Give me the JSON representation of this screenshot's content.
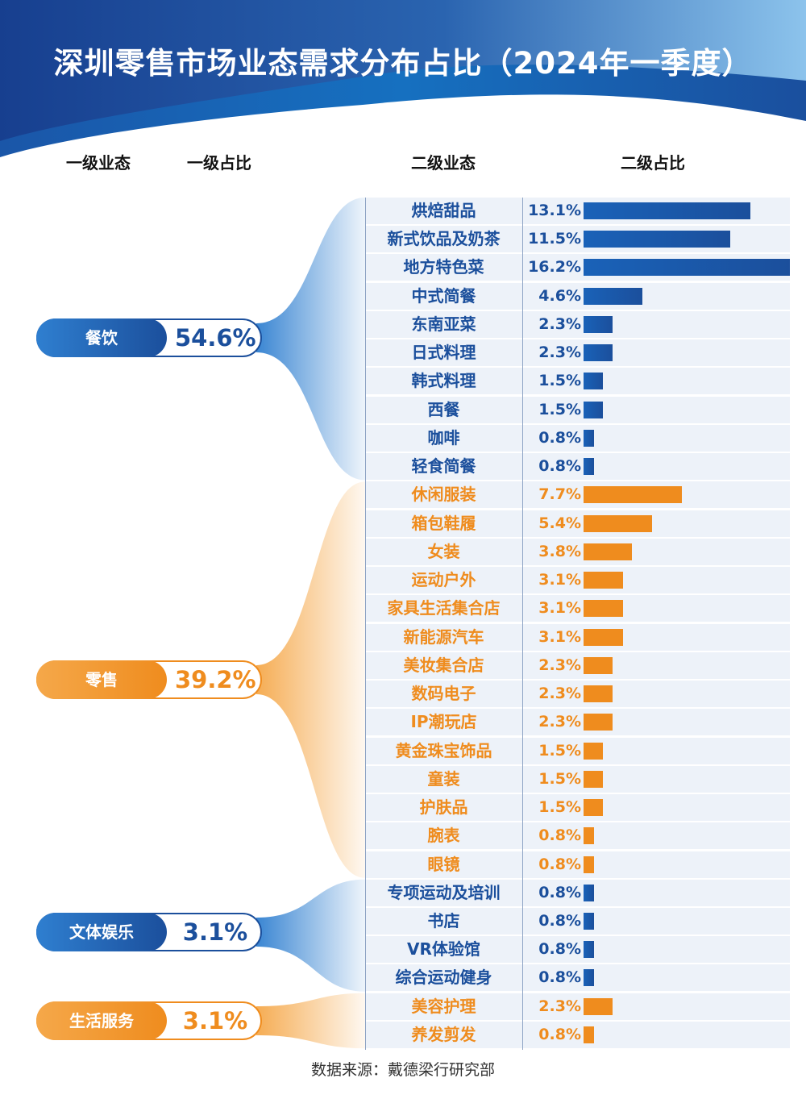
{
  "title": "深圳零售市场业态需求分布占比（2024年一季度）",
  "column_headers": [
    "一级业态",
    "一级占比",
    "二级业态",
    "二级占比"
  ],
  "source": "数据来源：戴德梁行研究部",
  "colors": {
    "blue": "#1b4f9c",
    "blue_light": "#2f7fd0",
    "orange": "#ef8c1e",
    "orange_light": "#f5a84a",
    "row_bg": "#edf2f9"
  },
  "chart_data": {
    "type": "bar",
    "orientation": "horizontal",
    "title": "深圳零售市场业态需求分布占比（2024年一季度）",
    "unit": "%",
    "groups": [
      {
        "name": "餐饮",
        "share": "54.6%",
        "color": "blue",
        "items": [
          {
            "name": "烘焙甜品",
            "value": 13.1
          },
          {
            "name": "新式饮品及奶茶",
            "value": 11.5
          },
          {
            "name": "地方特色菜",
            "value": 16.2
          },
          {
            "name": "中式简餐",
            "value": 4.6
          },
          {
            "name": "东南亚菜",
            "value": 2.3
          },
          {
            "name": "日式料理",
            "value": 2.3
          },
          {
            "name": "韩式料理",
            "value": 1.5
          },
          {
            "name": "西餐",
            "value": 1.5
          },
          {
            "name": "咖啡",
            "value": 0.8
          },
          {
            "name": "轻食简餐",
            "value": 0.8
          }
        ]
      },
      {
        "name": "零售",
        "share": "39.2%",
        "color": "orange",
        "items": [
          {
            "name": "休闲服装",
            "value": 7.7
          },
          {
            "name": "箱包鞋履",
            "value": 5.4
          },
          {
            "name": "女装",
            "value": 3.8
          },
          {
            "name": "运动户外",
            "value": 3.1
          },
          {
            "name": "家具生活集合店",
            "value": 3.1
          },
          {
            "name": "新能源汽车",
            "value": 3.1
          },
          {
            "name": "美妆集合店",
            "value": 2.3
          },
          {
            "name": "数码电子",
            "value": 2.3
          },
          {
            "name": "IP潮玩店",
            "value": 2.3
          },
          {
            "name": "黄金珠宝饰品",
            "value": 1.5
          },
          {
            "name": "童装",
            "value": 1.5
          },
          {
            "name": "护肤品",
            "value": 1.5
          },
          {
            "name": "腕表",
            "value": 0.8
          },
          {
            "name": "眼镜",
            "value": 0.8
          }
        ]
      },
      {
        "name": "文体娱乐",
        "share": "3.1%",
        "color": "blue",
        "items": [
          {
            "name": "专项运动及培训",
            "value": 0.8
          },
          {
            "name": "书店",
            "value": 0.8
          },
          {
            "name": "VR体验馆",
            "value": 0.8
          },
          {
            "name": "综合运动健身",
            "value": 0.8
          }
        ]
      },
      {
        "name": "生活服务",
        "share": "3.1%",
        "color": "orange",
        "items": [
          {
            "name": "美容护理",
            "value": 2.3
          },
          {
            "name": "养发剪发",
            "value": 0.8
          }
        ]
      }
    ]
  }
}
